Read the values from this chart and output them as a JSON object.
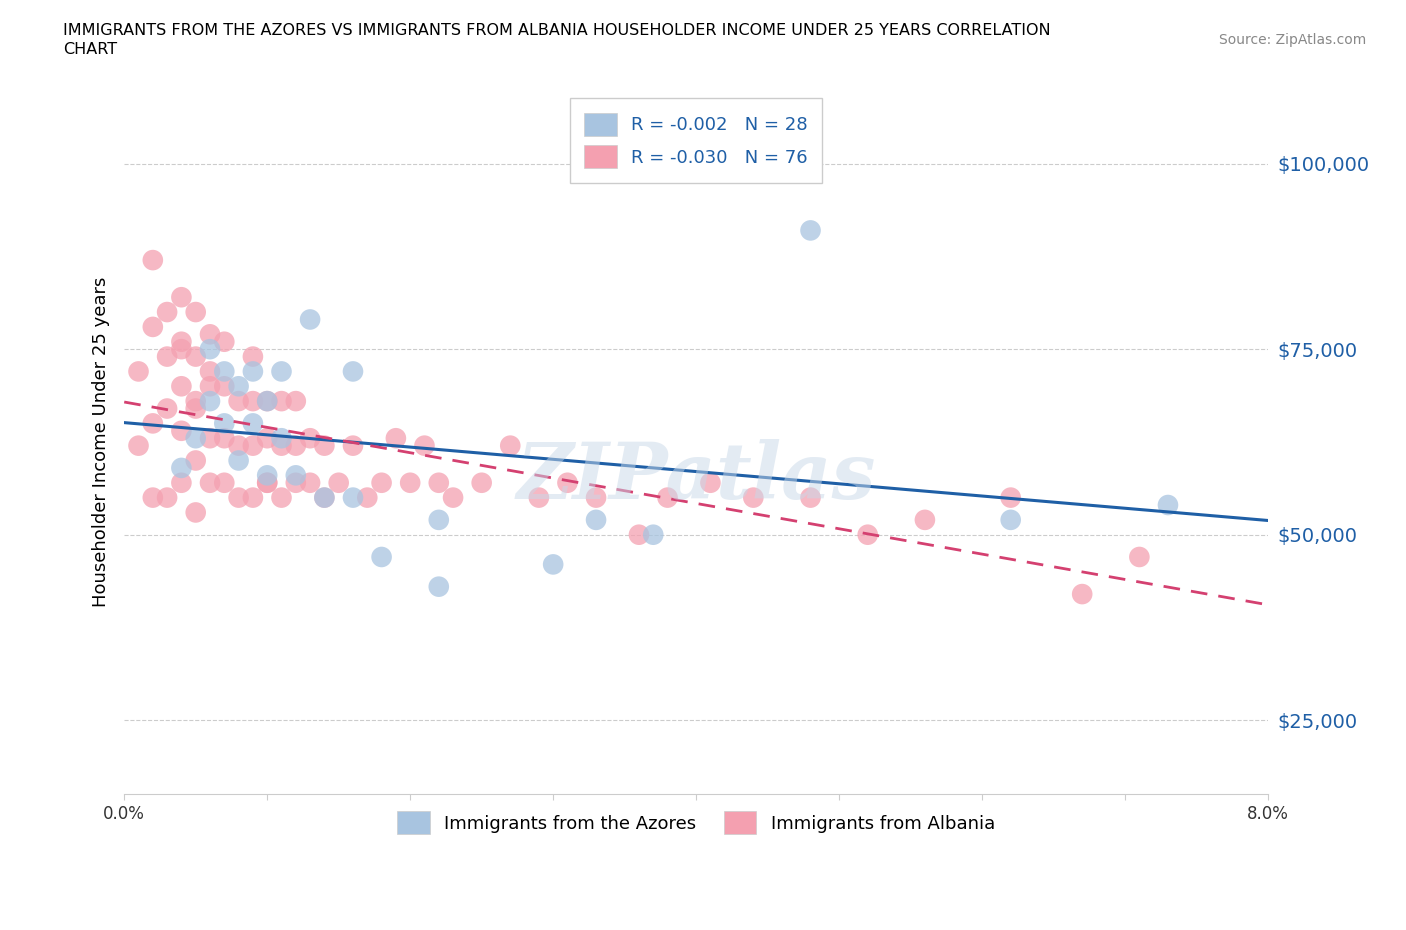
{
  "title_line1": "IMMIGRANTS FROM THE AZORES VS IMMIGRANTS FROM ALBANIA HOUSEHOLDER INCOME UNDER 25 YEARS CORRELATION",
  "title_line2": "CHART",
  "source": "Source: ZipAtlas.com",
  "ylabel": "Householder Income Under 25 years",
  "xlim": [
    0.0,
    0.08
  ],
  "ylim": [
    15000,
    110000
  ],
  "yticks": [
    25000,
    50000,
    75000,
    100000
  ],
  "ytick_labels": [
    "$25,000",
    "$50,000",
    "$75,000",
    "$100,000"
  ],
  "xticks": [
    0.0,
    0.01,
    0.02,
    0.03,
    0.04,
    0.05,
    0.06,
    0.07,
    0.08
  ],
  "xtick_labels": [
    "0.0%",
    "",
    "",
    "",
    "",
    "",
    "",
    "",
    "8.0%"
  ],
  "legend_label1": "Immigrants from the Azores",
  "legend_label2": "Immigrants from Albania",
  "color_azores": "#a8c4e0",
  "color_albania": "#f4a0b0",
  "trend_color_azores": "#1f5fa6",
  "trend_color_albania": "#d44070",
  "background_color": "#ffffff",
  "watermark": "ZIPatlas",
  "azores_x": [
    0.004,
    0.005,
    0.006,
    0.006,
    0.007,
    0.007,
    0.008,
    0.008,
    0.009,
    0.009,
    0.01,
    0.01,
    0.011,
    0.011,
    0.012,
    0.013,
    0.014,
    0.016,
    0.016,
    0.018,
    0.022,
    0.022,
    0.03,
    0.033,
    0.037,
    0.048,
    0.062,
    0.073
  ],
  "azores_y": [
    59000,
    63000,
    68000,
    75000,
    65000,
    72000,
    60000,
    70000,
    65000,
    72000,
    58000,
    68000,
    63000,
    72000,
    58000,
    79000,
    55000,
    55000,
    72000,
    47000,
    52000,
    43000,
    46000,
    52000,
    50000,
    91000,
    52000,
    54000
  ],
  "albania_x": [
    0.001,
    0.001,
    0.002,
    0.002,
    0.002,
    0.002,
    0.003,
    0.003,
    0.003,
    0.003,
    0.004,
    0.004,
    0.004,
    0.004,
    0.004,
    0.004,
    0.005,
    0.005,
    0.005,
    0.005,
    0.005,
    0.005,
    0.006,
    0.006,
    0.006,
    0.006,
    0.006,
    0.007,
    0.007,
    0.007,
    0.007,
    0.008,
    0.008,
    0.008,
    0.009,
    0.009,
    0.009,
    0.009,
    0.01,
    0.01,
    0.01,
    0.01,
    0.011,
    0.011,
    0.011,
    0.012,
    0.012,
    0.012,
    0.013,
    0.013,
    0.014,
    0.014,
    0.015,
    0.016,
    0.017,
    0.018,
    0.019,
    0.02,
    0.021,
    0.022,
    0.023,
    0.025,
    0.027,
    0.029,
    0.031,
    0.033,
    0.036,
    0.038,
    0.041,
    0.044,
    0.048,
    0.052,
    0.056,
    0.062,
    0.067,
    0.071
  ],
  "albania_y": [
    62000,
    72000,
    55000,
    65000,
    78000,
    87000,
    55000,
    67000,
    74000,
    80000,
    57000,
    64000,
    70000,
    76000,
    82000,
    75000,
    53000,
    60000,
    67000,
    74000,
    80000,
    68000,
    57000,
    63000,
    70000,
    77000,
    72000,
    57000,
    63000,
    70000,
    76000,
    55000,
    62000,
    68000,
    55000,
    62000,
    68000,
    74000,
    57000,
    63000,
    68000,
    57000,
    55000,
    62000,
    68000,
    57000,
    62000,
    68000,
    57000,
    63000,
    55000,
    62000,
    57000,
    62000,
    55000,
    57000,
    63000,
    57000,
    62000,
    57000,
    55000,
    57000,
    62000,
    55000,
    57000,
    55000,
    50000,
    55000,
    57000,
    55000,
    55000,
    50000,
    52000,
    55000,
    42000,
    47000
  ]
}
